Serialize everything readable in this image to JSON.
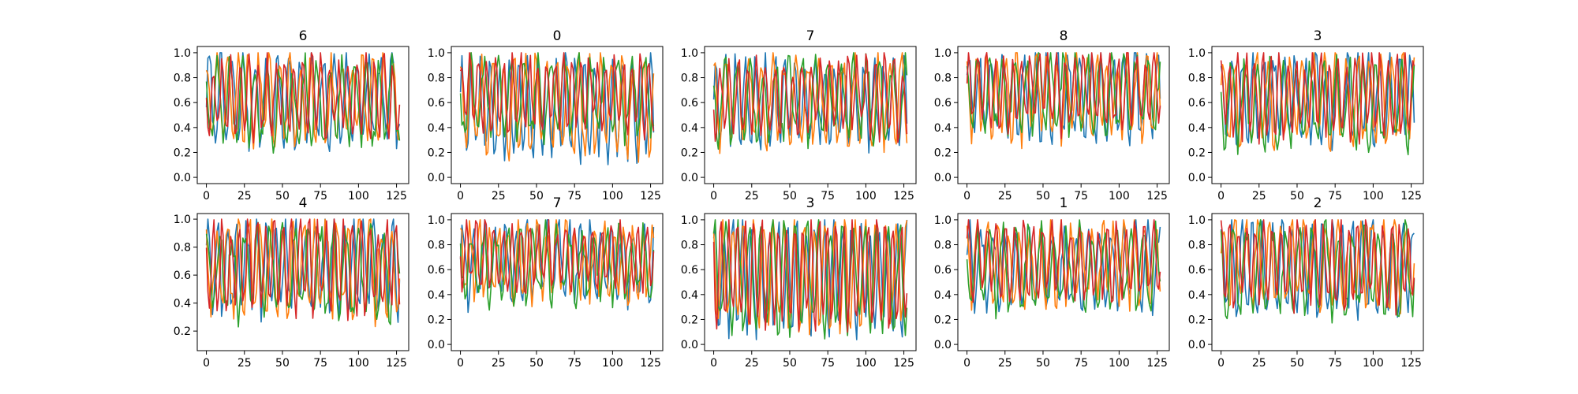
{
  "chart_data": {
    "type": "line",
    "grid": false,
    "legend": "none",
    "series_colors": [
      "#1f77b4",
      "#ff7f0e",
      "#2ca02c",
      "#d62728"
    ],
    "xlim": [
      -6,
      133
    ],
    "x_ticks": [
      "0",
      "25",
      "50",
      "75",
      "100",
      "125"
    ],
    "panels": [
      {
        "title": "6",
        "ylim": [
          -0.05,
          1.05
        ],
        "y_ticks": [
          "0.0",
          "0.2",
          "0.4",
          "0.6",
          "0.8",
          "1.0"
        ],
        "series": [
          {
            "base": 0.62,
            "amp": 0.33,
            "period": 7.5,
            "phase": 0.0
          },
          {
            "base": 0.63,
            "amp": 0.32,
            "period": 6.8,
            "phase": 1.1
          },
          {
            "base": 0.6,
            "amp": 0.3,
            "period": 8.2,
            "phase": 2.3
          },
          {
            "base": 0.65,
            "amp": 0.3,
            "period": 5.9,
            "phase": 3.0
          }
        ]
      },
      {
        "title": "0",
        "ylim": [
          -0.05,
          1.05
        ],
        "y_ticks": [
          "0.0",
          "0.2",
          "0.4",
          "0.6",
          "0.8",
          "1.0"
        ],
        "series": [
          {
            "base": 0.55,
            "amp": 0.38,
            "period": 6.2,
            "phase": 0.5
          },
          {
            "base": 0.58,
            "amp": 0.36,
            "period": 7.1,
            "phase": 1.7
          },
          {
            "base": 0.65,
            "amp": 0.3,
            "period": 8.8,
            "phase": 2.9
          },
          {
            "base": 0.68,
            "amp": 0.28,
            "period": 5.6,
            "phase": 0.9
          }
        ]
      },
      {
        "title": "7",
        "ylim": [
          -0.05,
          1.05
        ],
        "y_ticks": [
          "0.0",
          "0.2",
          "0.4",
          "0.6",
          "0.8",
          "1.0"
        ],
        "series": [
          {
            "base": 0.6,
            "amp": 0.33,
            "period": 6.5,
            "phase": 0.2
          },
          {
            "base": 0.62,
            "amp": 0.32,
            "period": 7.7,
            "phase": 1.4
          },
          {
            "base": 0.62,
            "amp": 0.3,
            "period": 8.5,
            "phase": 2.6
          },
          {
            "base": 0.65,
            "amp": 0.27,
            "period": 6.0,
            "phase": 3.4
          }
        ]
      },
      {
        "title": "8",
        "ylim": [
          -0.05,
          1.05
        ],
        "y_ticks": [
          "0.0",
          "0.2",
          "0.4",
          "0.6",
          "0.8",
          "1.0"
        ],
        "series": [
          {
            "base": 0.66,
            "amp": 0.3,
            "period": 7.3,
            "phase": 0.7
          },
          {
            "base": 0.66,
            "amp": 0.32,
            "period": 6.6,
            "phase": 1.9
          },
          {
            "base": 0.68,
            "amp": 0.28,
            "period": 8.0,
            "phase": 2.1
          },
          {
            "base": 0.7,
            "amp": 0.28,
            "period": 5.8,
            "phase": 0.3
          }
        ]
      },
      {
        "title": "3",
        "ylim": [
          -0.05,
          1.05
        ],
        "y_ticks": [
          "0.0",
          "0.2",
          "0.4",
          "0.6",
          "0.8",
          "1.0"
        ],
        "series": [
          {
            "base": 0.62,
            "amp": 0.32,
            "period": 6.9,
            "phase": 1.2
          },
          {
            "base": 0.63,
            "amp": 0.34,
            "period": 7.4,
            "phase": 0.4
          },
          {
            "base": 0.6,
            "amp": 0.32,
            "period": 8.6,
            "phase": 2.8
          },
          {
            "base": 0.66,
            "amp": 0.3,
            "period": 5.5,
            "phase": 1.6
          }
        ]
      },
      {
        "title": "4",
        "ylim": [
          0.06,
          1.04
        ],
        "y_ticks": [
          "0.2",
          "0.4",
          "0.6",
          "0.8",
          "1.0"
        ],
        "series": [
          {
            "base": 0.66,
            "amp": 0.3,
            "period": 6.4,
            "phase": 0.6
          },
          {
            "base": 0.65,
            "amp": 0.32,
            "period": 7.2,
            "phase": 2.0
          },
          {
            "base": 0.62,
            "amp": 0.3,
            "period": 8.3,
            "phase": 1.3
          },
          {
            "base": 0.68,
            "amp": 0.3,
            "period": 5.7,
            "phase": 2.7
          }
        ]
      },
      {
        "title": "7",
        "ylim": [
          -0.05,
          1.05
        ],
        "y_ticks": [
          "0.0",
          "0.2",
          "0.4",
          "0.6",
          "0.8",
          "1.0"
        ],
        "series": [
          {
            "base": 0.66,
            "amp": 0.3,
            "period": 7.0,
            "phase": 0.1
          },
          {
            "base": 0.66,
            "amp": 0.28,
            "period": 6.3,
            "phase": 1.5
          },
          {
            "base": 0.64,
            "amp": 0.26,
            "period": 8.1,
            "phase": 2.4
          },
          {
            "base": 0.7,
            "amp": 0.26,
            "period": 5.9,
            "phase": 3.1
          }
        ]
      },
      {
        "title": "3",
        "ylim": [
          -0.05,
          1.05
        ],
        "y_ticks": [
          "0.0",
          "0.2",
          "0.4",
          "0.6",
          "0.8",
          "1.0"
        ],
        "series": [
          {
            "base": 0.55,
            "amp": 0.42,
            "period": 6.0,
            "phase": 0.8
          },
          {
            "base": 0.58,
            "amp": 0.4,
            "period": 6.7,
            "phase": 2.2
          },
          {
            "base": 0.55,
            "amp": 0.4,
            "period": 7.6,
            "phase": 1.0
          },
          {
            "base": 0.58,
            "amp": 0.4,
            "period": 5.4,
            "phase": 2.5
          }
        ]
      },
      {
        "title": "1",
        "ylim": [
          -0.05,
          1.05
        ],
        "y_ticks": [
          "0.0",
          "0.2",
          "0.4",
          "0.6",
          "0.8",
          "1.0"
        ],
        "series": [
          {
            "base": 0.62,
            "amp": 0.3,
            "period": 7.8,
            "phase": 0.3
          },
          {
            "base": 0.65,
            "amp": 0.3,
            "period": 6.9,
            "phase": 1.8
          },
          {
            "base": 0.6,
            "amp": 0.3,
            "period": 8.4,
            "phase": 2.9
          },
          {
            "base": 0.68,
            "amp": 0.28,
            "period": 6.1,
            "phase": 0.6
          }
        ]
      },
      {
        "title": "2",
        "ylim": [
          -0.05,
          1.05
        ],
        "y_ticks": [
          "0.0",
          "0.2",
          "0.4",
          "0.6",
          "0.8",
          "1.0"
        ],
        "series": [
          {
            "base": 0.62,
            "amp": 0.34,
            "period": 6.6,
            "phase": 1.0
          },
          {
            "base": 0.65,
            "amp": 0.32,
            "period": 7.5,
            "phase": 0.2
          },
          {
            "base": 0.6,
            "amp": 0.34,
            "period": 8.7,
            "phase": 2.1
          },
          {
            "base": 0.66,
            "amp": 0.32,
            "period": 5.6,
            "phase": 1.4
          }
        ]
      }
    ]
  }
}
